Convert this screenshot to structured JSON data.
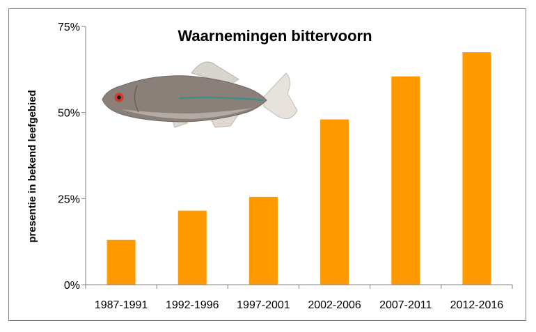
{
  "chart_data": {
    "type": "bar",
    "title": "Waarnemingen bittervoorn",
    "xlabel": "",
    "ylabel": "presentie in bekend leefgebied",
    "categories": [
      "1987-1991",
      "1992-1996",
      "1997-2001",
      "2002-2006",
      "2007-2011",
      "2012-2016"
    ],
    "values": [
      13,
      21.5,
      25.5,
      48,
      60.5,
      67.5
    ],
    "value_unit": "%",
    "ylim": [
      0,
      75
    ],
    "yticks": [
      0,
      25,
      50,
      75
    ],
    "ytick_labels": [
      "0%",
      "25%",
      "50%",
      "75%"
    ],
    "grid": false,
    "legend": "none",
    "bar_color": "#ff9900",
    "axis_color": "#808080",
    "illustration": "fish-icon"
  }
}
